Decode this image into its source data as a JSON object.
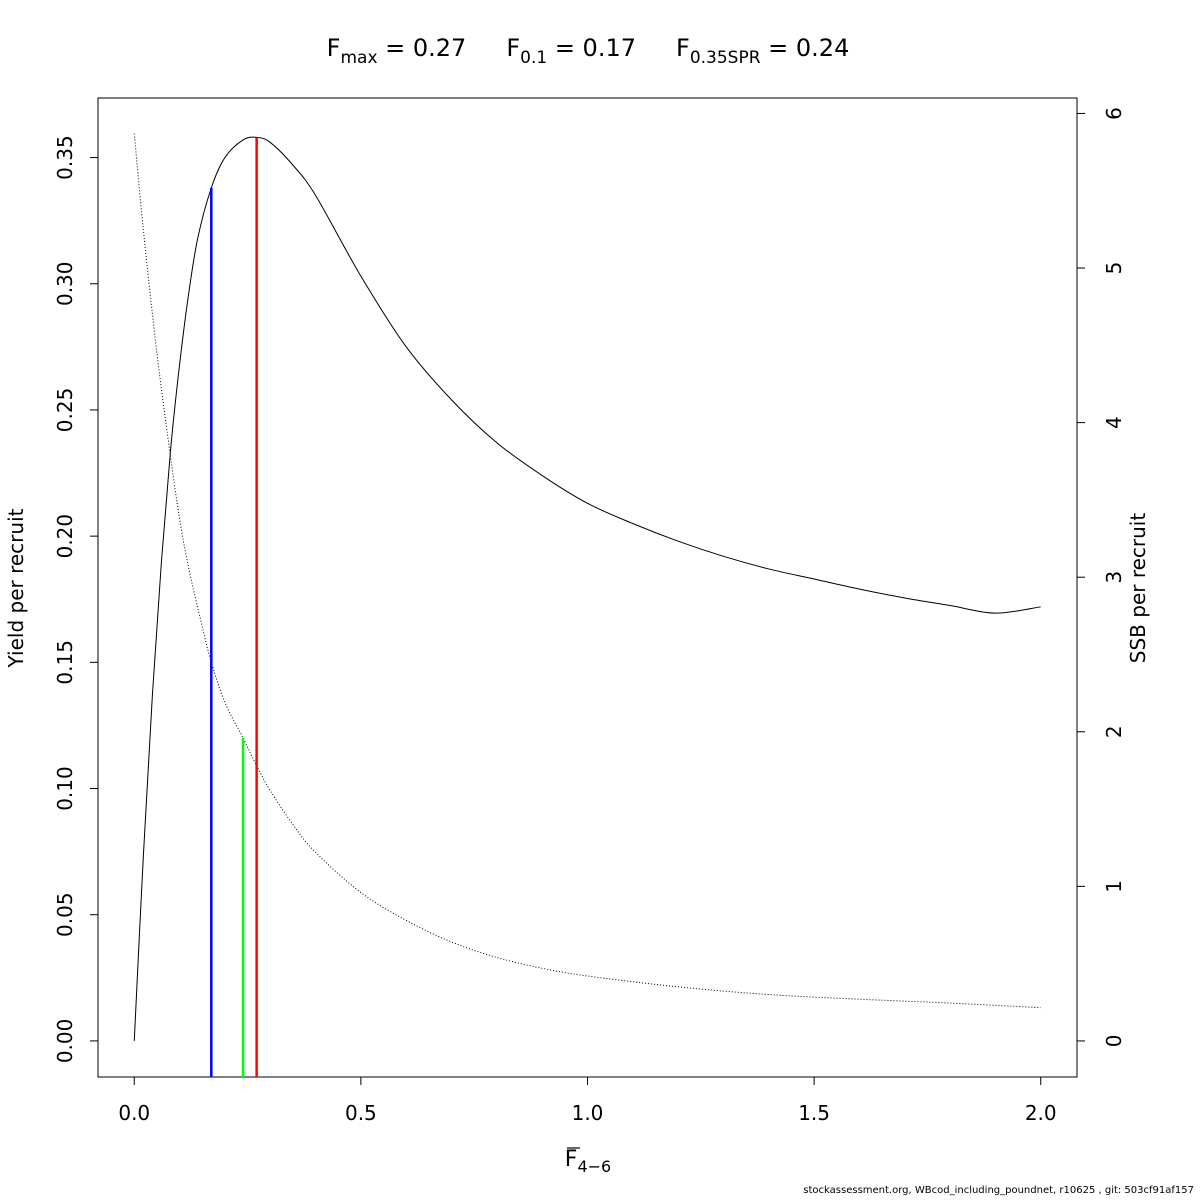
{
  "chart_data": {
    "type": "line",
    "title_parts": [
      {
        "base": "F",
        "sub": "max",
        "value": " = 0.27"
      },
      {
        "base": "F",
        "sub": "0.1",
        "value": " = 0.17"
      },
      {
        "base": "F",
        "sub": "0.35SPR",
        "value": " = 0.24"
      }
    ],
    "xlabel": {
      "base": "F",
      "sub": "4−6"
    },
    "ylabel_left": "Yield per recruit",
    "ylabel_right": "SSB per recruit",
    "xlim": [
      -0.08,
      2.08
    ],
    "ylim_left": [
      -0.0143,
      0.3736
    ],
    "ylim_right": [
      -0.2333,
      6.1
    ],
    "x_ticks": [
      0.0,
      0.5,
      1.0,
      1.5,
      2.0
    ],
    "x_tick_labels": [
      "0.0",
      "0.5",
      "1.0",
      "1.5",
      "2.0"
    ],
    "y_left_ticks": [
      0.0,
      0.05,
      0.1,
      0.15,
      0.2,
      0.25,
      0.3,
      0.35
    ],
    "y_left_tick_labels": [
      "0.00",
      "0.05",
      "0.10",
      "0.15",
      "0.20",
      "0.25",
      "0.30",
      "0.35"
    ],
    "y_right_ticks": [
      0,
      1,
      2,
      3,
      4,
      5,
      6
    ],
    "y_right_tick_labels": [
      "0",
      "1",
      "2",
      "3",
      "4",
      "5",
      "6"
    ],
    "series": [
      {
        "axis": "left",
        "style": "solid",
        "color": "#000000",
        "x": [
          0.0,
          0.02,
          0.04,
          0.06,
          0.08,
          0.1,
          0.12,
          0.14,
          0.17,
          0.2,
          0.24,
          0.27,
          0.3,
          0.35,
          0.4,
          0.5,
          0.6,
          0.7,
          0.8,
          0.9,
          1.0,
          1.1,
          1.2,
          1.3,
          1.4,
          1.5,
          1.6,
          1.7,
          1.8,
          1.9,
          2.0
        ],
        "y": [
          0.0,
          0.073,
          0.137,
          0.19,
          0.234,
          0.268,
          0.296,
          0.318,
          0.338,
          0.35,
          0.357,
          0.358,
          0.356,
          0.347,
          0.335,
          0.303,
          0.275,
          0.254,
          0.237,
          0.224,
          0.213,
          0.205,
          0.198,
          0.192,
          0.187,
          0.183,
          0.179,
          0.1755,
          0.1725,
          0.1695,
          0.172
        ]
      },
      {
        "axis": "right",
        "style": "dotted",
        "color": "#000000",
        "x": [
          0.0,
          0.02,
          0.05,
          0.08,
          0.1,
          0.12,
          0.15,
          0.17,
          0.2,
          0.24,
          0.27,
          0.3,
          0.35,
          0.4,
          0.5,
          0.6,
          0.7,
          0.8,
          0.9,
          1.0,
          1.2,
          1.4,
          1.6,
          1.8,
          2.0
        ],
        "y": [
          5.87,
          5.25,
          4.45,
          3.78,
          3.38,
          3.06,
          2.68,
          2.45,
          2.19,
          1.96,
          1.78,
          1.62,
          1.4,
          1.22,
          0.96,
          0.78,
          0.64,
          0.54,
          0.47,
          0.42,
          0.35,
          0.3,
          0.27,
          0.245,
          0.215
        ]
      }
    ],
    "reference_lines": [
      {
        "name": "F0.1",
        "x": 0.17,
        "y_top": 0.338,
        "axis": "left",
        "color": "#0000ff"
      },
      {
        "name": "F0.35SPR",
        "x": 0.24,
        "y_top": 1.96,
        "axis": "right",
        "color": "#00ff00"
      },
      {
        "name": "Fmax",
        "x": 0.27,
        "y_top": 0.358,
        "axis": "left",
        "color": "#ff0000"
      }
    ],
    "grid": false,
    "legend": "none"
  },
  "footer": "stockassessment.org, WBcod_including_poundnet, r10625 , git: 503cf91af157"
}
